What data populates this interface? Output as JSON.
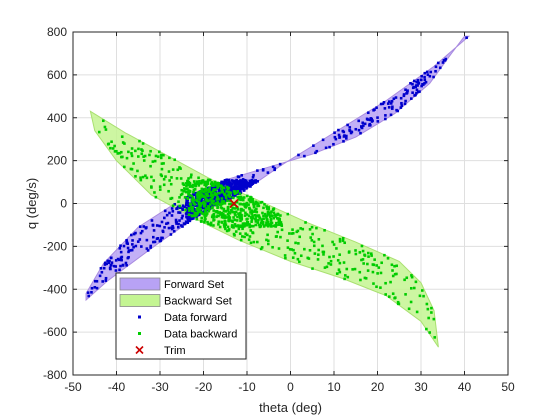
{
  "chart_data": {
    "type": "scatter",
    "title": "",
    "xlabel": "theta (deg)",
    "ylabel": "q (deg/s)",
    "xlim": [
      -50,
      50
    ],
    "ylim": [
      -800,
      800
    ],
    "xticks": [
      -50,
      -40,
      -30,
      -20,
      -10,
      0,
      10,
      20,
      30,
      40,
      50
    ],
    "yticks": [
      -800,
      -600,
      -400,
      -200,
      0,
      200,
      400,
      600,
      800
    ],
    "xtick_labels": [
      "-50",
      "-40",
      "-30",
      "-20",
      "-10",
      "0",
      "10",
      "20",
      "30",
      "40",
      "50"
    ],
    "ytick_labels": [
      "-800",
      "-600",
      "-400",
      "-200",
      "0",
      "200",
      "400",
      "600",
      "800"
    ],
    "grid": true,
    "legend_position": "bottom-left",
    "series": [
      {
        "name": "Forward Set",
        "kind": "polygon",
        "fill": "#b8a2f5",
        "stroke": "#a98be0",
        "points": [
          [
            -47,
            -450
          ],
          [
            -42,
            -360
          ],
          [
            -30,
            -180
          ],
          [
            -20,
            -40
          ],
          [
            -12,
            40
          ],
          [
            -2,
            180
          ],
          [
            10,
            330
          ],
          [
            22,
            480
          ],
          [
            33,
            640
          ],
          [
            41,
            780
          ],
          [
            40,
            780
          ],
          [
            37,
            700
          ],
          [
            32,
            560
          ],
          [
            24,
            420
          ],
          [
            15,
            310
          ],
          [
            5,
            230
          ],
          [
            -5,
            170
          ],
          [
            -15,
            110
          ],
          [
            -25,
            20
          ],
          [
            -35,
            -110
          ],
          [
            -43,
            -280
          ],
          [
            -47,
            -420
          ]
        ]
      },
      {
        "name": "Backward Set",
        "kind": "polygon",
        "fill": "#c4f592",
        "stroke": "#a9e070",
        "points": [
          [
            -46,
            430
          ],
          [
            -38,
            330
          ],
          [
            -28,
            220
          ],
          [
            -18,
            110
          ],
          [
            -8,
            20
          ],
          [
            4,
            -90
          ],
          [
            15,
            -180
          ],
          [
            25,
            -270
          ],
          [
            30,
            -370
          ],
          [
            33,
            -500
          ],
          [
            34,
            -670
          ],
          [
            30,
            -550
          ],
          [
            22,
            -430
          ],
          [
            12,
            -350
          ],
          [
            0,
            -270
          ],
          [
            -12,
            -170
          ],
          [
            -22,
            -70
          ],
          [
            -32,
            40
          ],
          [
            -40,
            200
          ],
          [
            -45,
            340
          ]
        ]
      },
      {
        "name": "Data forward",
        "kind": "scatter",
        "color": "#0000cc",
        "marker": "square",
        "count": 900,
        "note_region": "Forward Set"
      },
      {
        "name": "Data backward",
        "kind": "scatter",
        "color": "#00cc00",
        "marker": "square",
        "count": 900,
        "note_region": "Backward Set"
      },
      {
        "name": "Trim",
        "kind": "marker",
        "color": "#cc0000",
        "marker": "x",
        "points": [
          [
            -13,
            0
          ]
        ]
      }
    ]
  },
  "legend": [
    {
      "label": "Forward Set",
      "color": "#b8a2f5",
      "marker": "patch"
    },
    {
      "label": "Backward Set",
      "color": "#c4f592",
      "marker": "patch"
    },
    {
      "label": "Data forward",
      "color": "#0000cc",
      "marker": "dot"
    },
    {
      "label": "Data backward",
      "color": "#00cc00",
      "marker": "dot"
    },
    {
      "label": "Trim",
      "color": "#cc0000",
      "marker": "x"
    }
  ]
}
